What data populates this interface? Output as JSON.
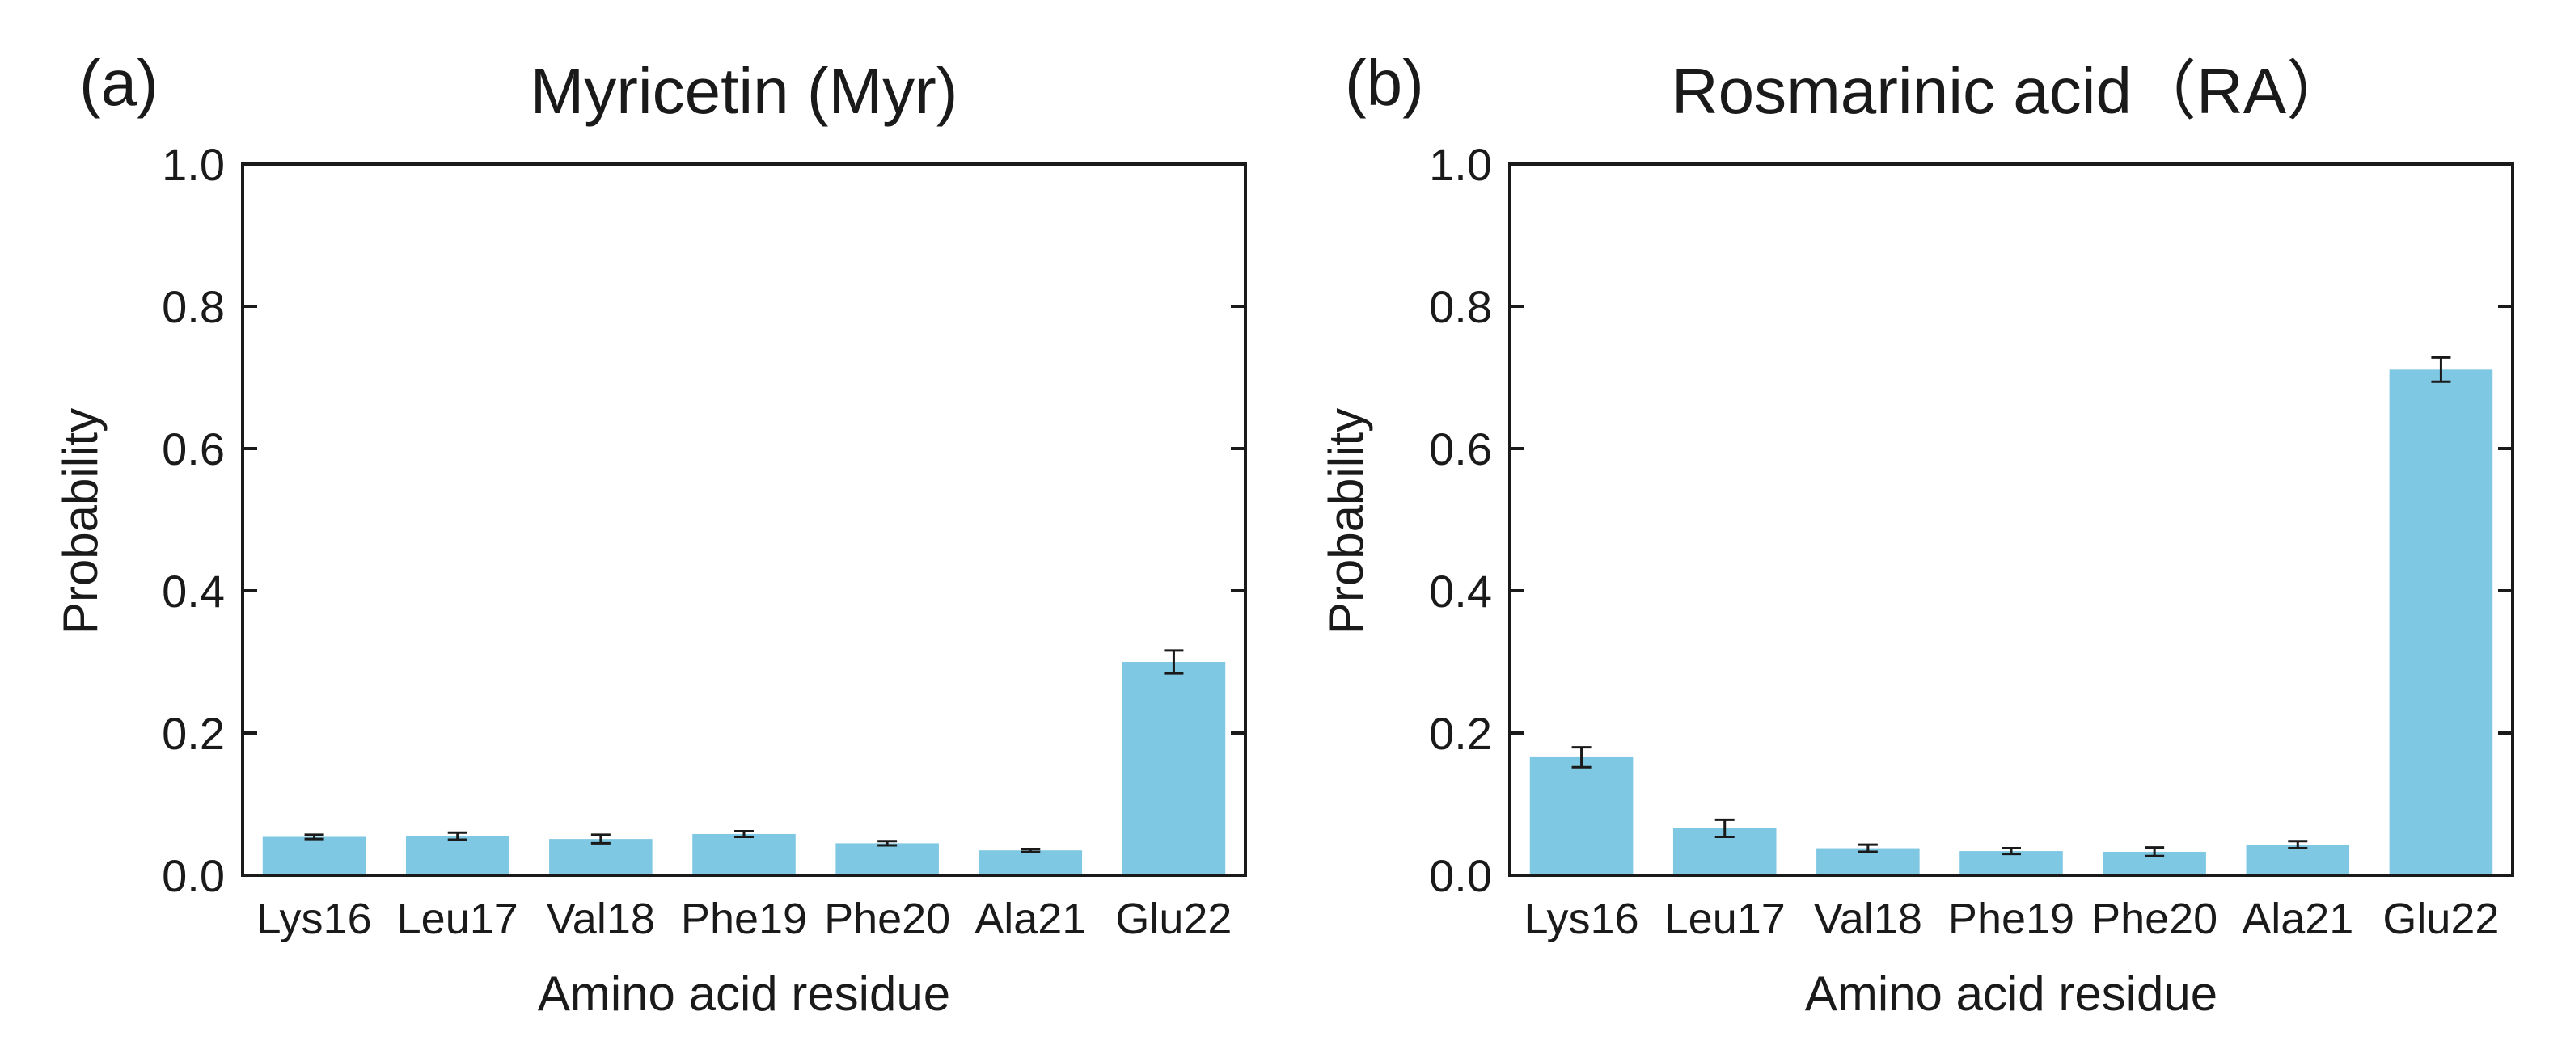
{
  "bar_color": "#7ec8e3",
  "axis_color": "#1a1a1a",
  "chart_data": [
    {
      "type": "bar",
      "panel": "(a)",
      "title": "Myricetin (Myr)",
      "xlabel": "Amino acid residue",
      "ylabel": "Probability",
      "ylim": [
        0,
        1.0
      ],
      "yticks": [
        0.0,
        0.2,
        0.4,
        0.6,
        0.8,
        1.0
      ],
      "ytick_labels": [
        "0.0",
        "0.2",
        "0.4",
        "0.6",
        "0.8",
        "1.0"
      ],
      "categories": [
        "Lys16",
        "Leu17",
        "Val18",
        "Phe19",
        "Phe20",
        "Ala21",
        "Glu22"
      ],
      "values": [
        0.054,
        0.055,
        0.051,
        0.058,
        0.045,
        0.035,
        0.3
      ],
      "errors": [
        0.003,
        0.005,
        0.006,
        0.004,
        0.003,
        0.002,
        0.016
      ]
    },
    {
      "type": "bar",
      "panel": "(b)",
      "title": "Rosmarinic acid（RA）",
      "xlabel": "Amino acid residue",
      "ylabel": "Probability",
      "ylim": [
        0,
        1.0
      ],
      "yticks": [
        0.0,
        0.2,
        0.4,
        0.6,
        0.8,
        1.0
      ],
      "ytick_labels": [
        "0.0",
        "0.2",
        "0.4",
        "0.6",
        "0.8",
        "1.0"
      ],
      "categories": [
        "Lys16",
        "Leu17",
        "Val18",
        "Phe19",
        "Phe20",
        "Ala21",
        "Glu22"
      ],
      "values": [
        0.166,
        0.066,
        0.038,
        0.034,
        0.033,
        0.043,
        0.711
      ],
      "errors": [
        0.014,
        0.012,
        0.005,
        0.004,
        0.006,
        0.005,
        0.017
      ]
    }
  ]
}
